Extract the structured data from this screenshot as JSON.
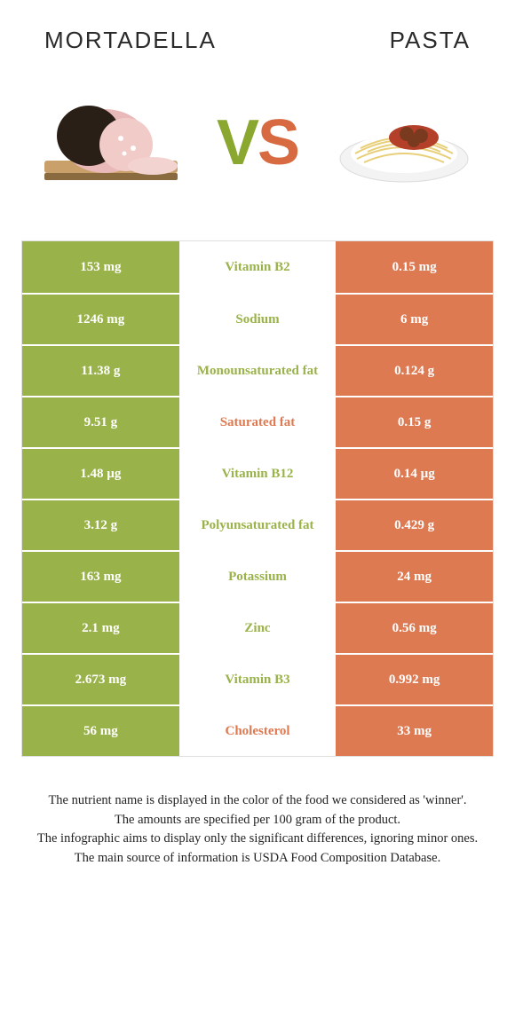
{
  "colors": {
    "left": "#9ab24a",
    "right": "#de7a52",
    "mid_bg": "#ffffff"
  },
  "titles": {
    "left": "Mortadella",
    "right": "Pasta"
  },
  "vs": {
    "v": "V",
    "s": "S"
  },
  "rows": [
    {
      "left": "153 mg",
      "label": "Vitamin B2",
      "right": "0.15 mg",
      "winner": "left"
    },
    {
      "left": "1246 mg",
      "label": "Sodium",
      "right": "6 mg",
      "winner": "left"
    },
    {
      "left": "11.38 g",
      "label": "Monounsaturated fat",
      "right": "0.124 g",
      "winner": "left"
    },
    {
      "left": "9.51 g",
      "label": "Saturated fat",
      "right": "0.15 g",
      "winner": "right"
    },
    {
      "left": "1.48 µg",
      "label": "Vitamin B12",
      "right": "0.14 µg",
      "winner": "left"
    },
    {
      "left": "3.12 g",
      "label": "Polyunsaturated fat",
      "right": "0.429 g",
      "winner": "left"
    },
    {
      "left": "163 mg",
      "label": "Potassium",
      "right": "24 mg",
      "winner": "left"
    },
    {
      "left": "2.1 mg",
      "label": "Zinc",
      "right": "0.56 mg",
      "winner": "left"
    },
    {
      "left": "2.673 mg",
      "label": "Vitamin B3",
      "right": "0.992 mg",
      "winner": "left"
    },
    {
      "left": "56 mg",
      "label": "Cholesterol",
      "right": "33 mg",
      "winner": "right"
    }
  ],
  "footer": [
    "The nutrient name is displayed in the color of the food we considered as 'winner'.",
    "The amounts are specified per 100 gram of the product.",
    "The infographic aims to display only the significant differences, ignoring minor ones.",
    "The main source of information is USDA Food Composition Database."
  ]
}
